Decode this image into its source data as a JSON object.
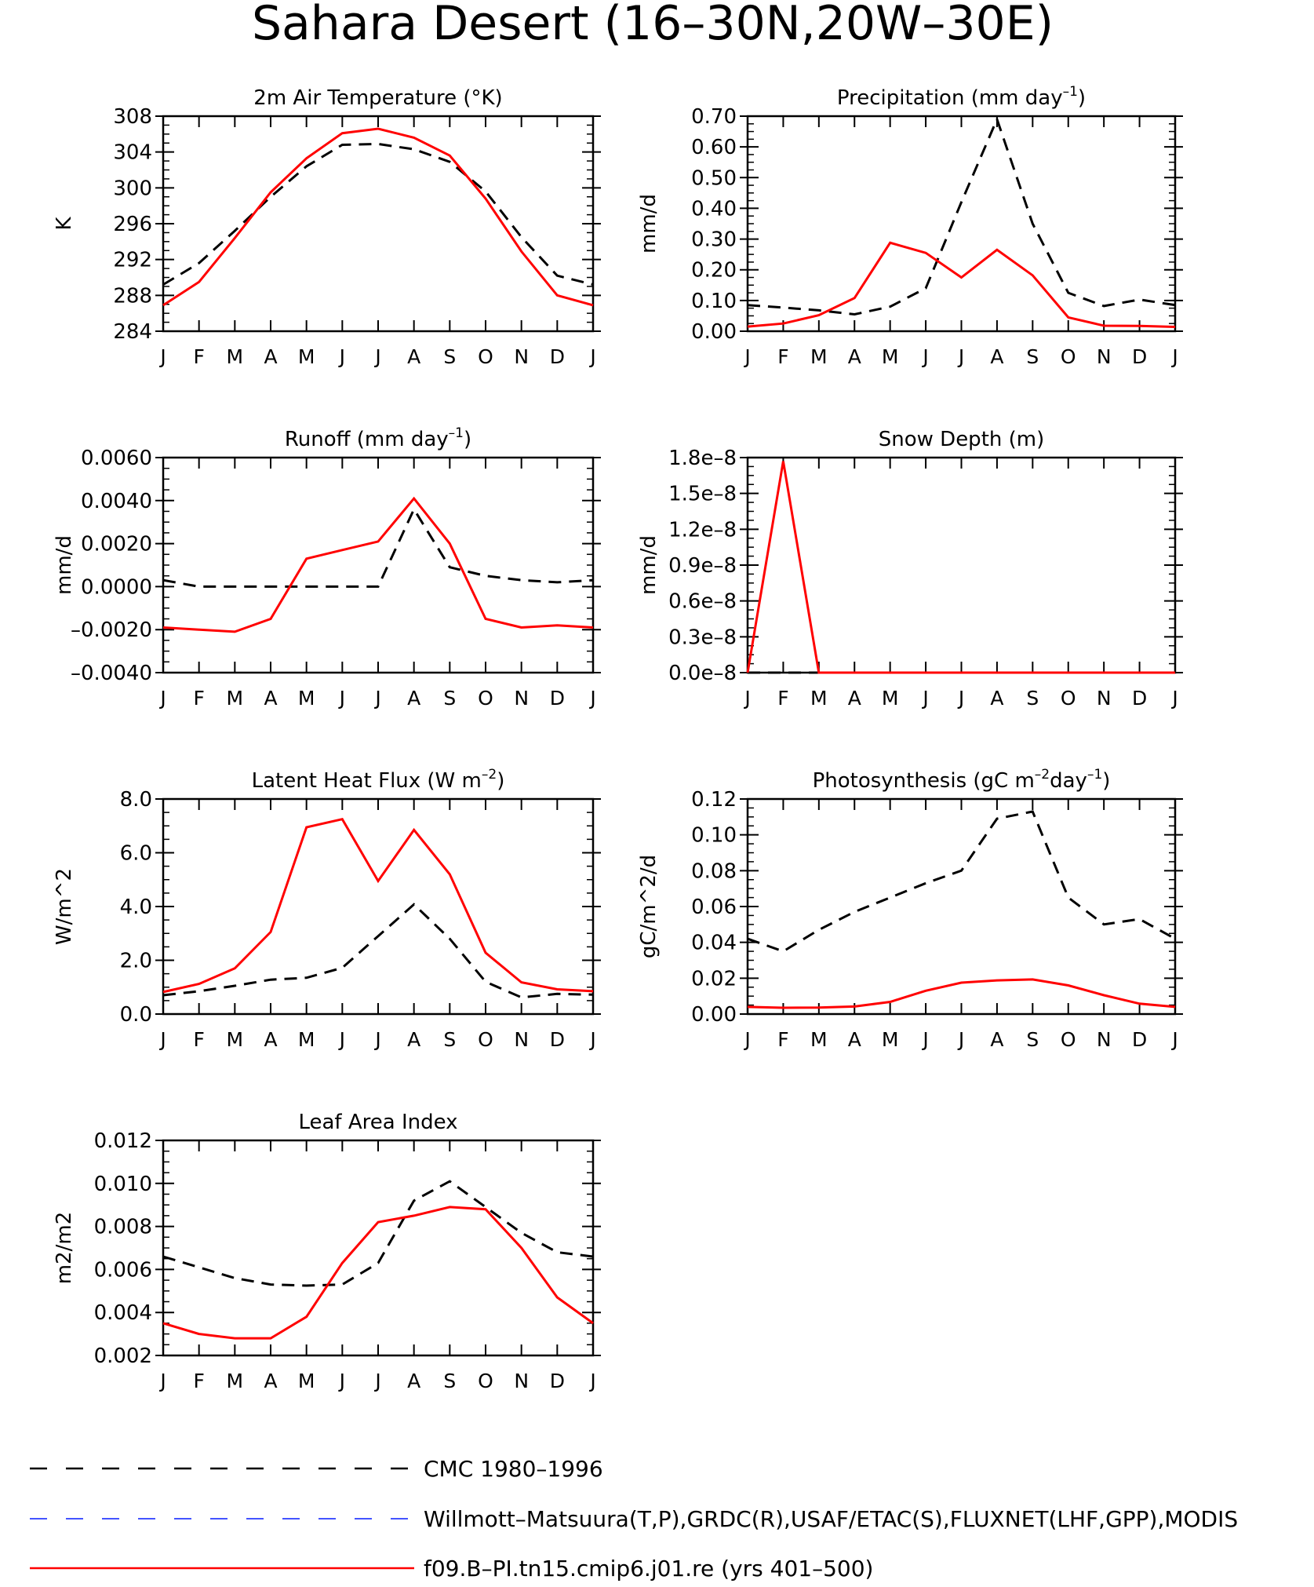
{
  "title": "Sahara Desert (16–30N,20W–30E)",
  "months": [
    "J",
    "F",
    "M",
    "A",
    "M",
    "J",
    "J",
    "A",
    "S",
    "O",
    "N",
    "D",
    "J"
  ],
  "colors": {
    "cmc": "#000000",
    "obs": "#2a3cff",
    "model": "#ff0000"
  },
  "legend": [
    {
      "key": "cmc",
      "label": "CMC 1980–1996",
      "style": "dashed"
    },
    {
      "key": "obs",
      "label": "Willmott–Matsuura(T,P),GRDC(R),USAF/ETAC(S),FLUXNET(LHF,GPP),MODIS",
      "style": "dashed"
    },
    {
      "key": "model",
      "label": "f09.B–PI.tn15.cmip6.j01.re (yrs 401–500)",
      "style": "solid"
    }
  ],
  "chart_data": [
    {
      "type": "line",
      "title_parts": [
        [
          "2m Air Temperature (°K)",
          ""
        ]
      ],
      "ylabel": "K",
      "ylim": [
        284,
        308
      ],
      "yticks": [
        "284",
        "288",
        "292",
        "296",
        "300",
        "304",
        "308"
      ],
      "series": [
        {
          "key": "cmc",
          "values": [
            289.2,
            291.6,
            295.2,
            299.0,
            302.4,
            304.8,
            304.9,
            304.3,
            302.9,
            299.6,
            294.5,
            290.2,
            289.2
          ]
        },
        {
          "key": "model",
          "values": [
            286.9,
            289.5,
            294.4,
            299.5,
            303.3,
            306.1,
            306.6,
            305.6,
            303.6,
            298.8,
            292.9,
            288.0,
            286.9
          ]
        }
      ]
    },
    {
      "type": "line",
      "title_parts": [
        [
          "Precipitation (mm day",
          ""
        ],
        [
          "–1",
          "sup"
        ],
        [
          ")",
          ""
        ]
      ],
      "ylabel": "mm/d",
      "ylim": [
        0,
        0.7
      ],
      "yticks": [
        "0.00",
        "0.10",
        "0.20",
        "0.30",
        "0.40",
        "0.50",
        "0.60",
        "0.70"
      ],
      "series": [
        {
          "key": "cmc",
          "values": [
            0.085,
            0.077,
            0.068,
            0.055,
            0.08,
            0.14,
            0.42,
            0.69,
            0.35,
            0.125,
            0.082,
            0.103,
            0.085
          ]
        },
        {
          "key": "model",
          "values": [
            0.015,
            0.025,
            0.052,
            0.108,
            0.288,
            0.255,
            0.175,
            0.265,
            0.182,
            0.045,
            0.018,
            0.017,
            0.014
          ]
        }
      ]
    },
    {
      "type": "line",
      "title_parts": [
        [
          "Runoff (mm day",
          ""
        ],
        [
          "–1",
          "sup"
        ],
        [
          ")",
          ""
        ]
      ],
      "ylabel": "mm/d",
      "ylim": [
        -0.004,
        0.006
      ],
      "yticks": [
        "–0.0040",
        "–0.0020",
        "0.0000",
        "0.0020",
        "0.0040",
        "0.0060"
      ],
      "series": [
        {
          "key": "cmc",
          "values": [
            0.0003,
            0.0,
            0.0,
            0.0,
            0.0,
            0.0,
            0.0,
            0.0036,
            0.0009,
            0.0005,
            0.0003,
            0.0002,
            0.0003
          ]
        },
        {
          "key": "model",
          "values": [
            -0.0019,
            -0.002,
            -0.0021,
            -0.0015,
            0.0013,
            0.0017,
            0.0021,
            0.0041,
            0.002,
            -0.0015,
            -0.0019,
            -0.0018,
            -0.0019
          ]
        }
      ]
    },
    {
      "type": "line",
      "title_parts": [
        [
          "Snow Depth (m)",
          ""
        ]
      ],
      "ylabel": "mm/d",
      "ylim": [
        0,
        1.8e-08
      ],
      "yticks": [
        "0.0e–8",
        "0.3e–8",
        "0.6e–8",
        "0.9e–8",
        "1.2e–8",
        "1.5e–8",
        "1.8e–8"
      ],
      "series": [
        {
          "key": "cmc",
          "values": [
            0,
            0,
            0,
            0,
            0,
            0,
            0,
            0,
            0,
            0,
            0,
            0,
            0
          ]
        },
        {
          "key": "model",
          "values": [
            0,
            1.77e-08,
            0,
            0,
            0,
            0,
            0,
            0,
            0,
            0,
            0,
            0,
            0
          ]
        }
      ]
    },
    {
      "type": "line",
      "title_parts": [
        [
          "Latent Heat Flux (W m",
          ""
        ],
        [
          "–2",
          "sup"
        ],
        [
          ")",
          ""
        ]
      ],
      "ylabel": "W/m^2",
      "ylim": [
        0,
        8
      ],
      "yticks": [
        "0.0",
        "2.0",
        "4.0",
        "6.0",
        "8.0"
      ],
      "series": [
        {
          "key": "cmc",
          "values": [
            0.7,
            0.85,
            1.05,
            1.28,
            1.35,
            1.72,
            2.9,
            4.08,
            2.8,
            1.2,
            0.62,
            0.75,
            0.72
          ]
        },
        {
          "key": "model",
          "values": [
            0.82,
            1.12,
            1.7,
            3.05,
            6.95,
            7.25,
            4.95,
            6.85,
            5.2,
            2.28,
            1.18,
            0.92,
            0.85
          ]
        }
      ]
    },
    {
      "type": "line",
      "title_parts": [
        [
          "Photosynthesis (gC m",
          ""
        ],
        [
          "–2",
          "sup"
        ],
        [
          "day",
          ""
        ],
        [
          "–1",
          "sup"
        ],
        [
          ")",
          ""
        ]
      ],
      "ylabel": "gC/m^2/d",
      "ylim": [
        0,
        0.12
      ],
      "yticks": [
        "0.00",
        "0.02",
        "0.04",
        "0.06",
        "0.08",
        "0.10",
        "0.12"
      ],
      "series": [
        {
          "key": "cmc",
          "values": [
            0.042,
            0.035,
            0.047,
            0.057,
            0.065,
            0.073,
            0.08,
            0.109,
            0.113,
            0.065,
            0.05,
            0.053,
            0.042
          ]
        },
        {
          "key": "model",
          "values": [
            0.004,
            0.0035,
            0.0036,
            0.0042,
            0.0068,
            0.013,
            0.0175,
            0.0188,
            0.0193,
            0.016,
            0.0105,
            0.0058,
            0.004
          ]
        }
      ]
    },
    {
      "type": "line",
      "title_parts": [
        [
          "Leaf Area Index",
          ""
        ]
      ],
      "ylabel": "m2/m2",
      "ylim": [
        0.002,
        0.012
      ],
      "yticks": [
        "0.002",
        "0.004",
        "0.006",
        "0.008",
        "0.010",
        "0.012"
      ],
      "series": [
        {
          "key": "cmc",
          "values": [
            0.0066,
            0.0061,
            0.0056,
            0.0053,
            0.00525,
            0.0053,
            0.0063,
            0.0092,
            0.0101,
            0.0089,
            0.0077,
            0.0068,
            0.0066
          ]
        },
        {
          "key": "model",
          "values": [
            0.0035,
            0.003,
            0.0028,
            0.0028,
            0.0038,
            0.0063,
            0.0082,
            0.0085,
            0.0089,
            0.0088,
            0.007,
            0.0047,
            0.0035
          ]
        }
      ]
    }
  ]
}
